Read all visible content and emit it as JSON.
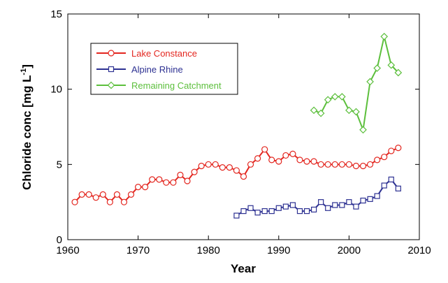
{
  "chart_data": {
    "type": "line",
    "xlabel": "Year",
    "ylabel": [
      "Chloride conc [mg L",
      "-1",
      "]"
    ],
    "xlim": [
      1960,
      2010
    ],
    "xticks": [
      1960,
      1970,
      1980,
      1990,
      2000,
      2010
    ],
    "ylim": [
      0,
      15
    ],
    "yticks": [
      0,
      5,
      10,
      15
    ],
    "series": [
      {
        "name": "Lake Constance",
        "color": "#e3261f",
        "marker": "circle",
        "x": [
          1961,
          1962,
          1963,
          1964,
          1965,
          1966,
          1967,
          1968,
          1969,
          1970,
          1971,
          1972,
          1973,
          1974,
          1975,
          1976,
          1977,
          1978,
          1979,
          1980,
          1981,
          1982,
          1983,
          1984,
          1985,
          1986,
          1987,
          1988,
          1989,
          1990,
          1991,
          1992,
          1993,
          1994,
          1995,
          1996,
          1997,
          1998,
          1999,
          2000,
          2001,
          2002,
          2003,
          2004,
          2005,
          2006,
          2007
        ],
        "values": [
          2.5,
          3.0,
          3.0,
          2.8,
          3.0,
          2.5,
          3.0,
          2.5,
          3.0,
          3.5,
          3.5,
          4.0,
          4.0,
          3.8,
          3.8,
          4.3,
          3.9,
          4.5,
          4.9,
          5.0,
          5.0,
          4.8,
          4.8,
          4.6,
          4.2,
          5.0,
          5.4,
          6.0,
          5.3,
          5.2,
          5.6,
          5.7,
          5.3,
          5.2,
          5.2,
          5.0,
          5.0,
          5.0,
          5.0,
          5.0,
          4.9,
          4.9,
          5.0,
          5.3,
          5.5,
          5.9,
          6.1
        ]
      },
      {
        "name": "Alpine Rhine",
        "color": "#2d3192",
        "marker": "square",
        "x": [
          1984,
          1985,
          1986,
          1987,
          1988,
          1989,
          1990,
          1991,
          1992,
          1993,
          1994,
          1995,
          1996,
          1997,
          1998,
          1999,
          2000,
          2001,
          2002,
          2003,
          2004,
          2005,
          2006,
          2007
        ],
        "values": [
          1.6,
          1.9,
          2.1,
          1.8,
          1.9,
          1.9,
          2.1,
          2.2,
          2.3,
          1.9,
          1.9,
          2.0,
          2.5,
          2.1,
          2.3,
          2.3,
          2.5,
          2.2,
          2.6,
          2.7,
          2.9,
          3.6,
          4.0,
          3.4
        ]
      },
      {
        "name": "Remaining Catchment",
        "color": "#5cbf3c",
        "marker": "diamond",
        "x": [
          1995,
          1996,
          1997,
          1998,
          1999,
          2000,
          2001,
          2002,
          2003,
          2004,
          2005,
          2006,
          2007
        ],
        "values": [
          8.6,
          8.4,
          9.3,
          9.5,
          9.5,
          8.6,
          8.5,
          7.3,
          10.5,
          11.4,
          13.5,
          11.6,
          11.1
        ]
      }
    ]
  }
}
